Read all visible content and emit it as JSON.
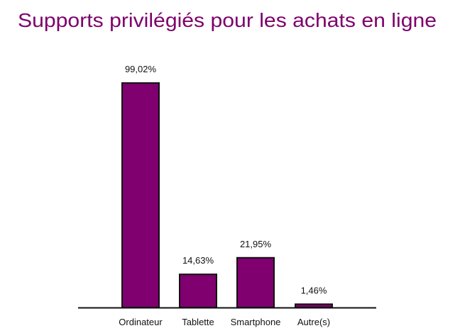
{
  "chart_data": {
    "type": "bar",
    "title": "Supports privilégiés pour les achats en ligne",
    "categories": [
      "Ordinateur",
      "Tablette",
      "Smartphone",
      "Autre(s)"
    ],
    "values": [
      99.02,
      14.63,
      21.95,
      1.46
    ],
    "data_labels": [
      "99,02%",
      "14,63%",
      "21,95%",
      "1,46%"
    ],
    "xlabel": "",
    "ylabel": "",
    "ylim": [
      0,
      100
    ],
    "grid": false,
    "bar_color": "#7f006e",
    "bar_edge_color": "#111111",
    "title_color": "#7d006c"
  }
}
